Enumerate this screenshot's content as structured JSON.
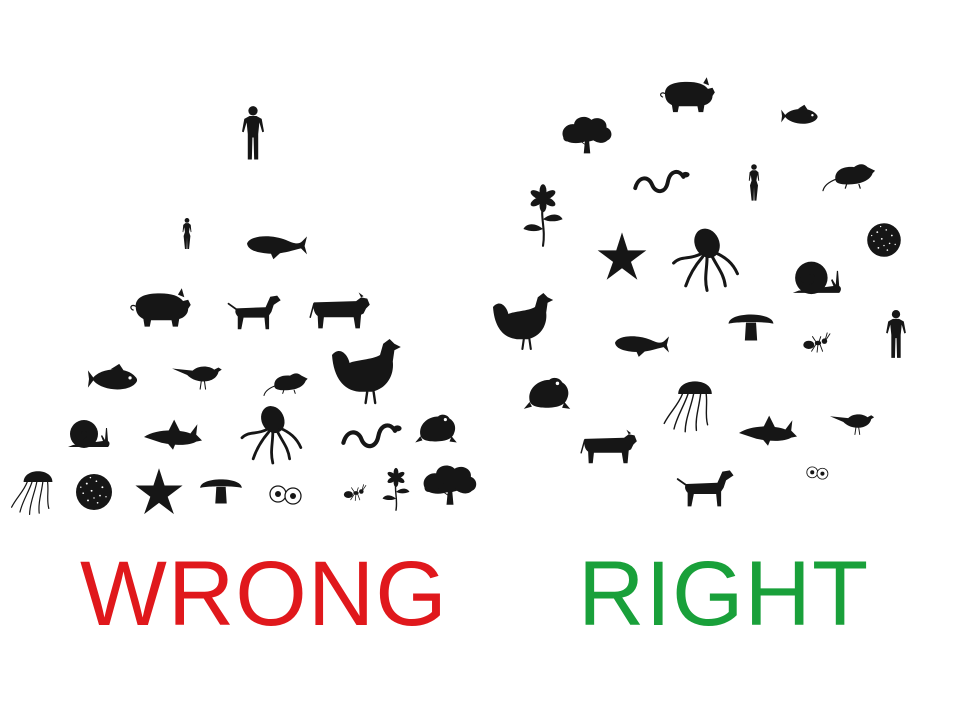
{
  "labels": {
    "wrong": "WRONG",
    "right": "RIGHT"
  },
  "colors": {
    "wrong": "#e0181c",
    "right": "#19a03a",
    "silhouette": "#161616",
    "background": "#ffffff"
  },
  "groups": {
    "wrong": {
      "arrangement": "pyramid",
      "organisms": [
        "human",
        "woman",
        "whale",
        "pig",
        "dog",
        "cow",
        "fish",
        "bird",
        "rat",
        "chicken",
        "snail",
        "shark",
        "octopus",
        "snake",
        "frog",
        "jellyfish",
        "coral",
        "starfish",
        "mushroom",
        "eggs",
        "ant",
        "flower",
        "tree"
      ]
    },
    "right": {
      "arrangement": "circle",
      "organisms": [
        "pig",
        "fish",
        "tree",
        "snake",
        "woman",
        "rat",
        "flower",
        "starfish",
        "octopus",
        "coral",
        "snail",
        "chicken",
        "whale",
        "mushroom",
        "ant",
        "human",
        "frog",
        "jellyfish",
        "shark",
        "bird",
        "cow",
        "dog",
        "eggs"
      ]
    }
  }
}
